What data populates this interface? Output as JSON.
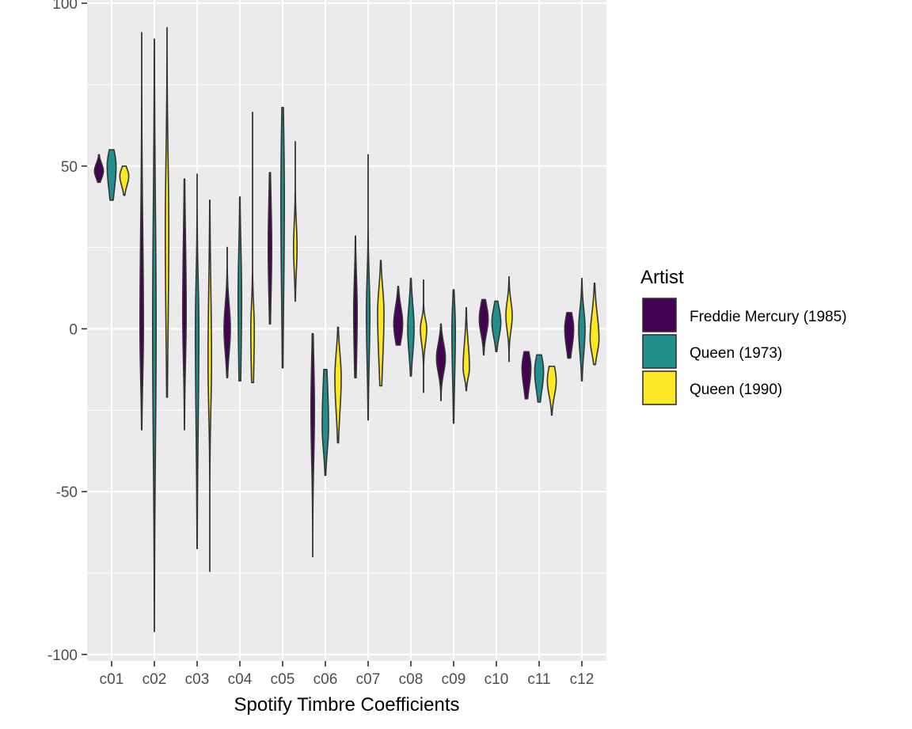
{
  "chart_data": {
    "type": "violin",
    "title": "",
    "xlabel": "Spotify Timbre Coefficients",
    "ylabel": "",
    "ylim": [
      -102,
      101
    ],
    "yticks": [
      -100,
      -50,
      0,
      50,
      100
    ],
    "categories": [
      "c01",
      "c02",
      "c03",
      "c04",
      "c05",
      "c06",
      "c07",
      "c08",
      "c09",
      "c10",
      "c11",
      "c12"
    ],
    "legend": {
      "title": "Artist",
      "position": "right",
      "entries": [
        "Freddie Mercury (1985)",
        "Queen (1973)",
        "Queen (1990)"
      ]
    },
    "colors": {
      "Freddie Mercury (1985)": "#440154",
      "Queen (1973)": "#21908C",
      "Queen (1990)": "#FDE725",
      "panel": "#EBEBEB",
      "grid": "#FFFFFF",
      "outline": "#333333"
    },
    "grid": true,
    "series": [
      {
        "name": "Freddie Mercury (1985)",
        "stats": [
          {
            "min": 45,
            "q1": 47,
            "median": 48.5,
            "q3": 50,
            "max": 53.5
          },
          {
            "min": -31,
            "q1": -10,
            "median": 0,
            "q3": 20,
            "max": 91
          },
          {
            "min": -31,
            "q1": -5,
            "median": 5,
            "q3": 20,
            "max": 46
          },
          {
            "min": -15,
            "q1": -5,
            "median": 0,
            "q3": 5,
            "max": 25
          },
          {
            "min": 1.5,
            "q1": 15,
            "median": 25,
            "q3": 35,
            "max": 48
          },
          {
            "min": -70,
            "q1": -35,
            "median": -25,
            "q3": -15,
            "max": -1.5
          },
          {
            "min": -15,
            "q1": -5,
            "median": 5,
            "q3": 12,
            "max": 28.5
          },
          {
            "min": -5,
            "q1": -2,
            "median": 1.5,
            "q3": 5,
            "max": 13
          },
          {
            "min": -22,
            "q1": -12,
            "median": -9,
            "q3": -6,
            "max": 1.5
          },
          {
            "min": -8,
            "q1": 0,
            "median": 3,
            "q3": 6,
            "max": 9
          },
          {
            "min": -21.5,
            "q1": -16,
            "median": -12,
            "q3": -9,
            "max": -7
          },
          {
            "min": -9,
            "q1": -4,
            "median": 0,
            "q3": 3,
            "max": 5
          }
        ]
      },
      {
        "name": "Queen (1973)",
        "stats": [
          {
            "min": 39.5,
            "q1": 45,
            "median": 50,
            "q3": 53,
            "max": 55
          },
          {
            "min": -93,
            "q1": -25,
            "median": 0,
            "q3": 25,
            "max": 89
          },
          {
            "min": -67.5,
            "q1": -20,
            "median": 0,
            "q3": 10,
            "max": 47.5
          },
          {
            "min": -16,
            "q1": -5,
            "median": 10,
            "q3": 20,
            "max": 40.5
          },
          {
            "min": -12,
            "q1": 20,
            "median": 40,
            "q3": 55,
            "max": 68
          },
          {
            "min": -45,
            "q1": -35,
            "median": -30,
            "q3": -20,
            "max": -12.5
          },
          {
            "min": -28,
            "q1": -5,
            "median": 5,
            "q3": 12,
            "max": 53.5
          },
          {
            "min": -14.5,
            "q1": -5,
            "median": 0,
            "q3": 5,
            "max": 15.5
          },
          {
            "min": -29,
            "q1": -10,
            "median": 0,
            "q3": 5,
            "max": 12
          },
          {
            "min": -7,
            "q1": -1,
            "median": 2,
            "q3": 5,
            "max": 8.5
          },
          {
            "min": -22.5,
            "q1": -17,
            "median": -13,
            "q3": -10,
            "max": -8
          },
          {
            "min": -16,
            "q1": -5,
            "median": 0,
            "q3": 4,
            "max": 15.5
          }
        ]
      },
      {
        "name": "Queen (1990)",
        "stats": [
          {
            "min": 41,
            "q1": 45,
            "median": 47,
            "q3": 48.5,
            "max": 50
          },
          {
            "min": -21,
            "q1": 10,
            "median": 30,
            "q3": 45,
            "max": 92.5
          },
          {
            "min": -74.5,
            "q1": -20,
            "median": -10,
            "q3": 5,
            "max": 39.5
          },
          {
            "min": -16.5,
            "q1": -10,
            "median": 0,
            "q3": 5,
            "max": 66.5
          },
          {
            "min": 8.5,
            "q1": 20,
            "median": 25,
            "q3": 30,
            "max": 57.5
          },
          {
            "min": -35,
            "q1": -22,
            "median": -15,
            "q3": -10,
            "max": 0.5
          },
          {
            "min": -17.5,
            "q1": -5,
            "median": 5,
            "q3": 10,
            "max": 21
          },
          {
            "min": -19.5,
            "q1": -3,
            "median": 0,
            "q3": 2,
            "max": 15
          },
          {
            "min": -19,
            "q1": -14,
            "median": -12,
            "q3": -7,
            "max": 6.5
          },
          {
            "min": -10,
            "q1": 1,
            "median": 4,
            "q3": 7,
            "max": 16
          },
          {
            "min": -26.5,
            "q1": -19,
            "median": -16,
            "q3": -13,
            "max": -11.5
          },
          {
            "min": -11,
            "q1": -6,
            "median": -3,
            "q3": 2,
            "max": 14
          }
        ]
      }
    ]
  }
}
